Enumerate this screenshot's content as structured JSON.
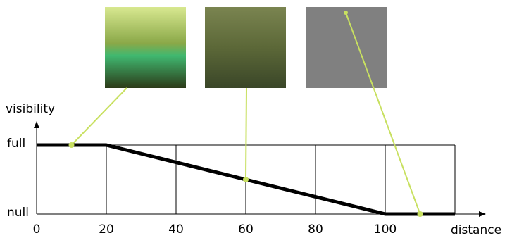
{
  "chart_data": {
    "type": "line",
    "x_label": "distance",
    "y_label": "visibility",
    "xlim": [
      0,
      120
    ],
    "xticks": [
      0,
      20,
      40,
      60,
      80,
      100
    ],
    "ylim": [
      0,
      1
    ],
    "yticks": [
      {
        "value": 0,
        "label": "null"
      },
      {
        "value": 1,
        "label": "full"
      }
    ],
    "grid": true,
    "series": [
      {
        "color": "#000000",
        "x": [
          0,
          20,
          100,
          120
        ],
        "values": [
          1,
          1,
          0,
          0
        ]
      }
    ],
    "samples": {
      "color": "#c8e060",
      "x": [
        10,
        60,
        110
      ],
      "values": [
        1,
        0.5,
        0
      ]
    }
  }
}
